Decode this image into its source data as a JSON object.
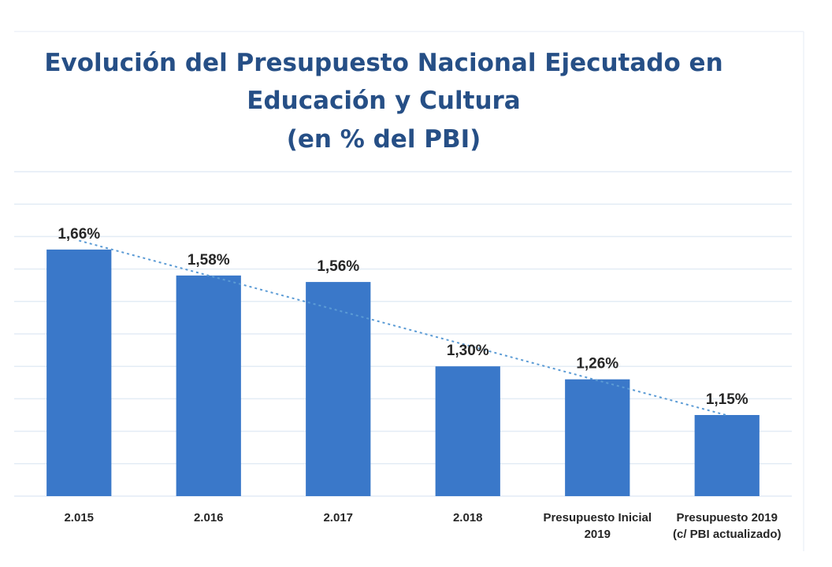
{
  "chart_data": {
    "type": "bar",
    "title": "Evolución del Presupuesto Nacional Ejecutado en Educación y Cultura (en % del PBI)",
    "title_lines": [
      "Evolución del Presupuesto Nacional Ejecutado en",
      "Educación y Cultura",
      "(en % del PBI)"
    ],
    "categories": [
      "2.015",
      "2.016",
      "2.017",
      "2.018",
      "Presupuesto Inicial 2019",
      "Presupuesto 2019 (c/ PBI actualizado)"
    ],
    "category_label_lines": [
      [
        "2.015"
      ],
      [
        "2.016"
      ],
      [
        "2.017"
      ],
      [
        "2.018"
      ],
      [
        "Presupuesto Inicial",
        "2019"
      ],
      [
        "Presupuesto 2019",
        "(c/ PBI actualizado)"
      ]
    ],
    "values": [
      1.66,
      1.58,
      1.56,
      1.3,
      1.26,
      1.15
    ],
    "data_labels": [
      "1,66%",
      "1,58%",
      "1,56%",
      "1,30%",
      "1,26%",
      "1,15%"
    ],
    "ylim": [
      0.9,
      1.9
    ],
    "y_gridline_step": 0.1,
    "y_tick_labels_shown": false,
    "grid": true,
    "trendline": {
      "type": "linear",
      "style": "dotted",
      "color": "#5b9bd5"
    },
    "xlabel": "",
    "ylabel": "",
    "legend": "none",
    "colors": {
      "bar": "#3a78c9",
      "title": "#264f86",
      "labels": "#262626",
      "grid": "#e3ecf5"
    }
  }
}
